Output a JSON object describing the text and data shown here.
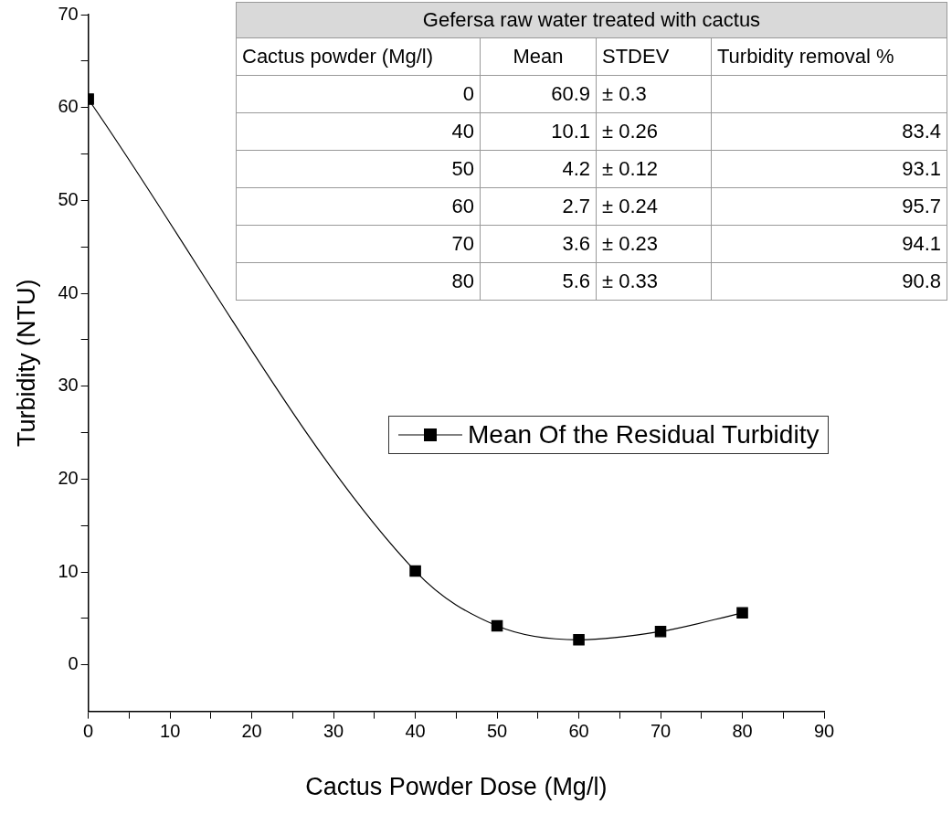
{
  "chart_data": {
    "type": "line",
    "xlabel": "Cactus Powder Dose (Mg/l)",
    "ylabel": "Turbidity (NTU)",
    "x": [
      0,
      40,
      50,
      60,
      70,
      80
    ],
    "series": [
      {
        "name": "Mean Of the Residual Turbidity",
        "color": "#000000",
        "values": [
          60.9,
          10.1,
          4.2,
          2.7,
          3.6,
          5.6
        ]
      }
    ],
    "xlim": [
      0,
      90
    ],
    "xticks": [
      0,
      {
        "value": 5,
        "label": null
      },
      10,
      {
        "value": 15,
        "label": null
      },
      20,
      {
        "value": 25,
        "label": null
      },
      30,
      {
        "value": 35,
        "label": null
      },
      40,
      {
        "value": 45,
        "label": null
      },
      50,
      {
        "value": 55,
        "label": null
      },
      60,
      {
        "value": 65,
        "label": null
      },
      70,
      {
        "value": 75,
        "label": null
      },
      80,
      {
        "value": 85,
        "label": null
      },
      90
    ],
    "ylim": [
      -5,
      70
    ],
    "yticks": [
      0,
      {
        "value": 5,
        "label": null
      },
      10,
      {
        "value": 15,
        "label": null
      },
      20,
      {
        "value": 25,
        "label": null
      },
      30,
      {
        "value": 35,
        "label": null
      },
      40,
      {
        "value": 45,
        "label": null
      },
      50,
      {
        "value": 55,
        "label": null
      },
      60,
      {
        "value": 65,
        "label": null
      },
      70
    ],
    "grid": false,
    "legend": "right",
    "marker": "square",
    "line_style": "solid",
    "annotations": [
      "Gefersa raw water treated with cactus",
      "Cactus powder (Mg/l)",
      "Mean",
      "STDEV",
      "Turbidity removal %",
      "0",
      "40",
      "50",
      "60",
      "70",
      "80",
      "60.9",
      "10.1",
      "4.2",
      "2.7",
      "3.6",
      "5.6",
      "± 0.3",
      "± 0.26",
      "± 0.12",
      "± 0.24",
      "± 0.23",
      "± 0.33",
      "83.4",
      "93.1",
      "95.7",
      "94.1",
      "90.8"
    ]
  }
}
